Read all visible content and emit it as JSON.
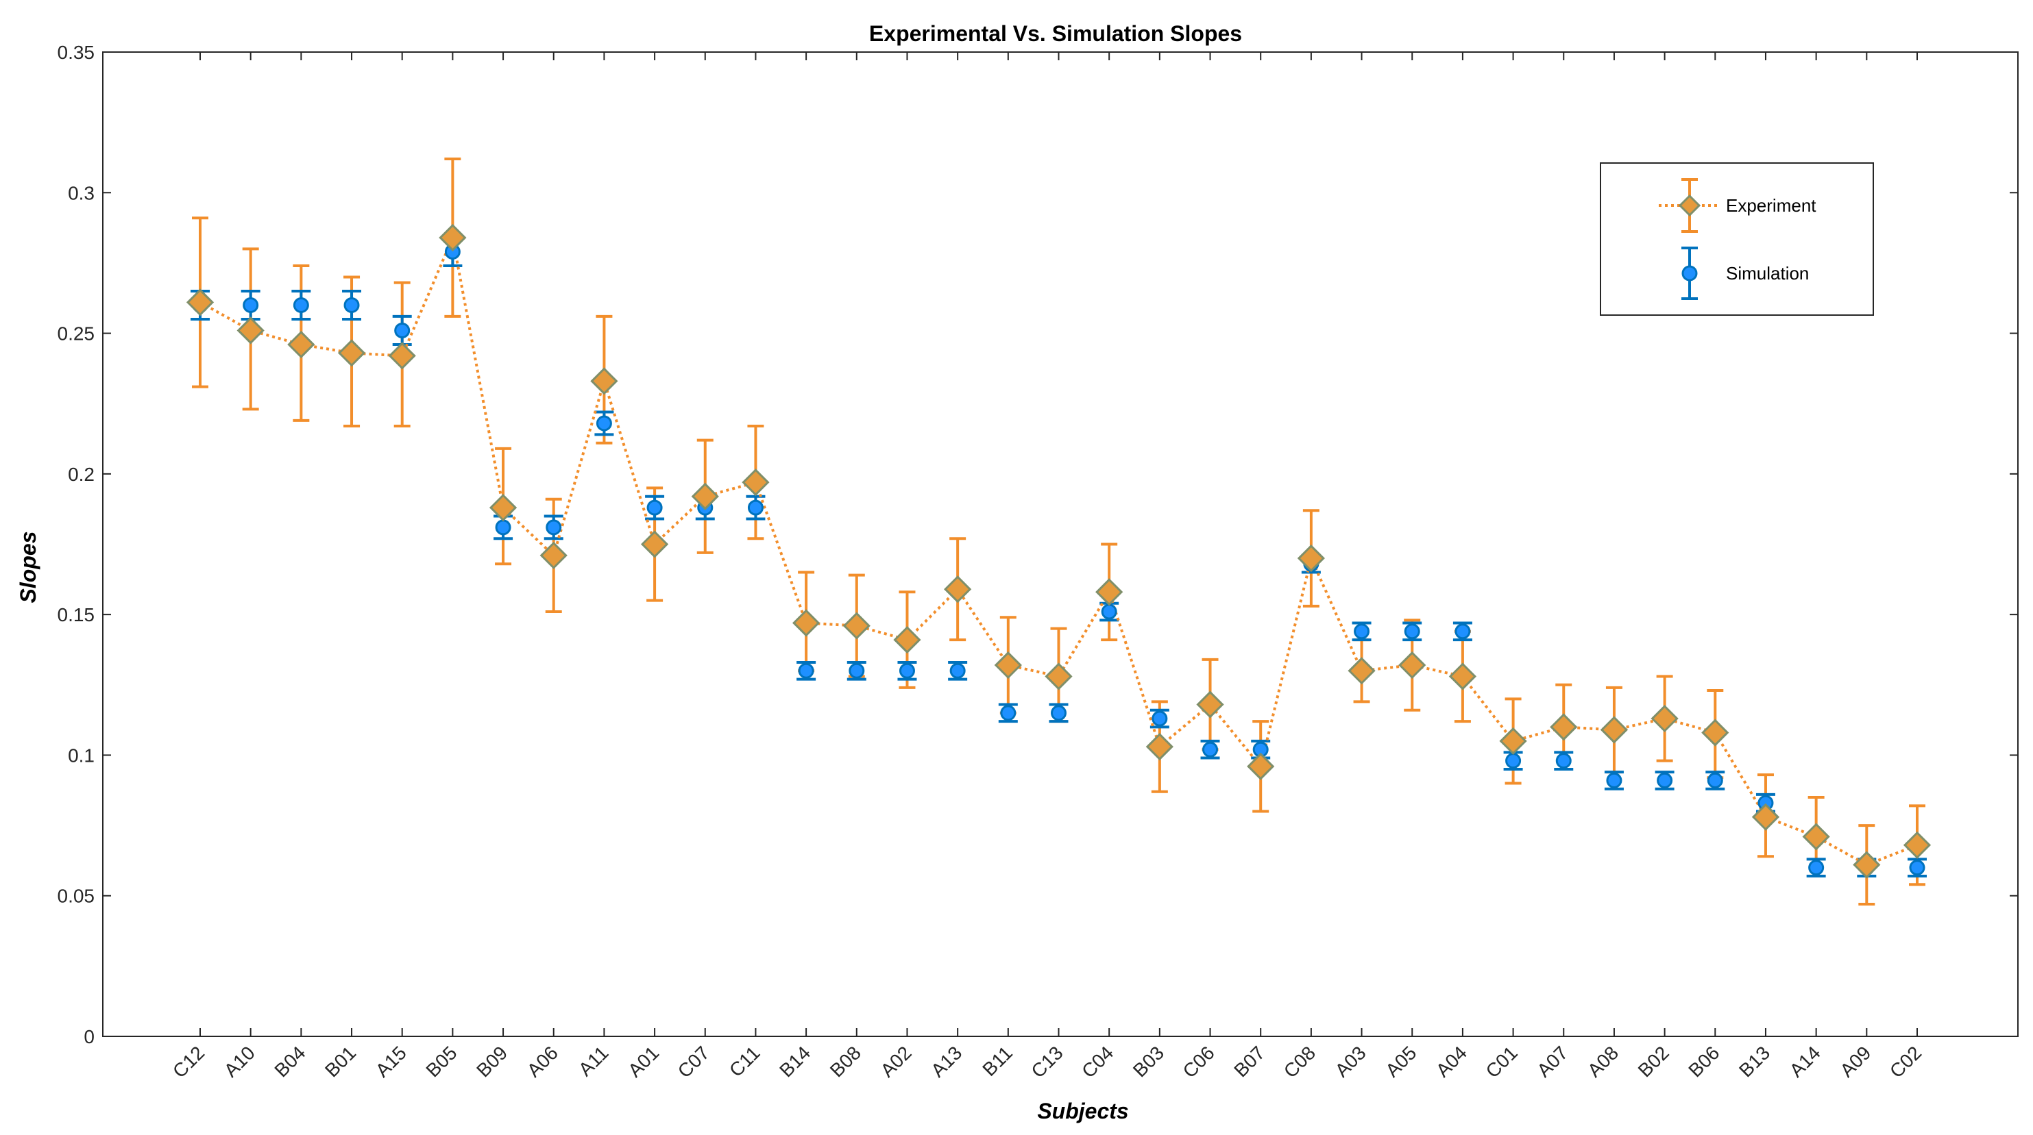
{
  "chart_data": {
    "type": "line",
    "title": "Experimental Vs. Simulation Slopes",
    "xlabel": "Subjects",
    "ylabel": "Slopes",
    "ylim": [
      0,
      0.35
    ],
    "yticks": [
      "0",
      "0.05",
      "0.1",
      "0.15",
      "0.2",
      "0.25",
      "0.3",
      "0.35"
    ],
    "categories": [
      "C12",
      "A10",
      "B04",
      "B01",
      "A15",
      "B05",
      "B09",
      "A06",
      "A11",
      "A01",
      "C07",
      "C11",
      "B14",
      "B08",
      "A02",
      "A13",
      "B11",
      "C13",
      "C04",
      "B03",
      "C06",
      "B07",
      "C08",
      "A03",
      "A05",
      "A04",
      "C01",
      "A07",
      "A08",
      "B02",
      "B06",
      "B13",
      "A14",
      "A09",
      "C02"
    ],
    "legend_position": "top-right",
    "series": [
      {
        "name": "Experiment",
        "color": "#F28E2B",
        "marker_fill": "#E59A3C",
        "marker_edge": "#7F8F6A",
        "values": [
          0.261,
          0.251,
          0.246,
          0.243,
          0.242,
          0.284,
          0.188,
          0.171,
          0.233,
          0.175,
          0.192,
          0.197,
          0.147,
          0.146,
          0.141,
          0.159,
          0.132,
          0.128,
          0.158,
          0.103,
          0.118,
          0.096,
          0.17,
          0.13,
          0.132,
          0.128,
          0.105,
          0.11,
          0.109,
          0.113,
          0.108,
          0.078,
          0.071,
          0.061,
          0.068
        ],
        "err_low": [
          0.231,
          0.223,
          0.219,
          0.217,
          0.217,
          0.256,
          0.168,
          0.151,
          0.211,
          0.155,
          0.172,
          0.177,
          0.13,
          0.128,
          0.124,
          0.141,
          0.115,
          0.112,
          0.141,
          0.087,
          0.102,
          0.08,
          0.153,
          0.119,
          0.116,
          0.112,
          0.09,
          0.095,
          0.094,
          0.098,
          0.092,
          0.064,
          0.057,
          0.047,
          0.054
        ],
        "err_high": [
          0.291,
          0.28,
          0.274,
          0.27,
          0.268,
          0.312,
          0.209,
          0.191,
          0.256,
          0.195,
          0.212,
          0.217,
          0.165,
          0.164,
          0.158,
          0.177,
          0.149,
          0.145,
          0.175,
          0.119,
          0.134,
          0.112,
          0.187,
          0.141,
          0.148,
          0.144,
          0.12,
          0.125,
          0.124,
          0.128,
          0.123,
          0.093,
          0.085,
          0.075,
          0.082
        ]
      },
      {
        "name": "Simulation",
        "color": "#0072BD",
        "marker_fill": "#1E90FF",
        "values": [
          0.26,
          0.26,
          0.26,
          0.26,
          0.251,
          0.279,
          0.181,
          0.181,
          0.218,
          0.188,
          0.188,
          0.188,
          0.13,
          0.13,
          0.13,
          0.13,
          0.115,
          0.115,
          0.151,
          0.113,
          0.102,
          0.102,
          0.168,
          0.144,
          0.144,
          0.144,
          0.098,
          0.098,
          0.091,
          0.091,
          0.091,
          0.083,
          0.06,
          0.06,
          0.06
        ],
        "err_low": [
          0.255,
          0.255,
          0.255,
          0.255,
          0.246,
          0.274,
          0.177,
          0.177,
          0.214,
          0.184,
          0.184,
          0.184,
          0.127,
          0.127,
          0.127,
          0.127,
          0.112,
          0.112,
          0.148,
          0.11,
          0.099,
          0.099,
          0.165,
          0.141,
          0.141,
          0.141,
          0.095,
          0.095,
          0.088,
          0.088,
          0.088,
          0.08,
          0.057,
          0.057,
          0.057
        ],
        "err_high": [
          0.265,
          0.265,
          0.265,
          0.265,
          0.256,
          0.284,
          0.185,
          0.185,
          0.222,
          0.192,
          0.192,
          0.192,
          0.133,
          0.133,
          0.133,
          0.133,
          0.118,
          0.118,
          0.154,
          0.116,
          0.105,
          0.105,
          0.171,
          0.147,
          0.147,
          0.147,
          0.101,
          0.101,
          0.094,
          0.094,
          0.094,
          0.086,
          0.063,
          0.063,
          0.063
        ]
      }
    ]
  }
}
